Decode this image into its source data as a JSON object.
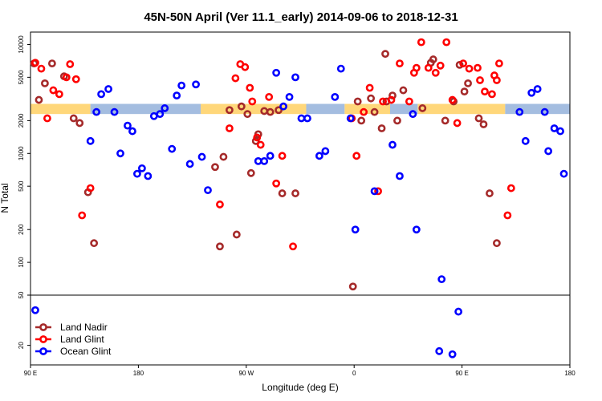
{
  "chart_data": {
    "type": "scatter",
    "title": "45N-50N April (Ver 11.1_early)   2014-09-06 to 2018-12-31",
    "xlabel": "Longitude (deg E)",
    "ylabel": "N Total",
    "x_ticks": [
      {
        "value": 90,
        "label": "90 E"
      },
      {
        "value": 180,
        "label": "180"
      },
      {
        "value": 270,
        "label": "90 W"
      },
      {
        "value": 360,
        "label": "0"
      },
      {
        "value": 450,
        "label": "90 E"
      },
      {
        "value": 540,
        "label": "180"
      }
    ],
    "xlim": [
      90,
      540
    ],
    "upper_panel": {
      "scale": "log",
      "ylim": [
        50,
        13000
      ],
      "y_ticks": [
        100,
        200,
        500,
        1000,
        2000,
        5000,
        10000
      ]
    },
    "lower_panel": {
      "scale": "log",
      "ylim": [
        14,
        50
      ],
      "y_ticks": [
        20,
        50
      ]
    },
    "bands": [
      {
        "color": "#ffd77a",
        "segments": [
          [
            90,
            140
          ],
          [
            232,
            320
          ],
          [
            352,
            390
          ],
          [
            413,
            486
          ]
        ]
      },
      {
        "color": "#a4bde0",
        "segments": [
          [
            140,
            232
          ],
          [
            320,
            352
          ],
          [
            390,
            413
          ],
          [
            486,
            540
          ]
        ]
      }
    ],
    "band_range": [
      2300,
      2850
    ],
    "legend": {
      "position": "bottom-left",
      "entries": [
        {
          "name": "Land Nadir",
          "color": "#a52a2a"
        },
        {
          "name": "Land Glint",
          "color": "#ff0000"
        },
        {
          "name": "Ocean Glint",
          "color": "#0000ff"
        }
      ]
    },
    "series": [
      {
        "name": "Land Nadir",
        "color": "#a52a2a",
        "points": [
          [
            93,
            6700
          ],
          [
            97,
            3100
          ],
          [
            102,
            4400
          ],
          [
            108,
            6700
          ],
          [
            118,
            5100
          ],
          [
            126,
            2100
          ],
          [
            131,
            1900
          ],
          [
            138,
            440
          ],
          [
            143,
            150
          ],
          [
            244,
            750
          ],
          [
            251,
            930
          ],
          [
            248,
            140
          ],
          [
            256,
            2500
          ],
          [
            262,
            180
          ],
          [
            266,
            2700
          ],
          [
            271,
            2300
          ],
          [
            274,
            660
          ],
          [
            278,
            1300
          ],
          [
            280,
            1500
          ],
          [
            285,
            2450
          ],
          [
            290,
            2400
          ],
          [
            297,
            2500
          ],
          [
            300,
            430
          ],
          [
            311,
            430
          ],
          [
            359,
            60
          ],
          [
            363,
            3000
          ],
          [
            366,
            2000
          ],
          [
            374,
            3200
          ],
          [
            377,
            2400
          ],
          [
            383,
            1700
          ],
          [
            387,
            3000
          ],
          [
            392,
            3400
          ],
          [
            396,
            2000
          ],
          [
            401,
            3800
          ],
          [
            417,
            2600
          ],
          [
            424,
            6800
          ],
          [
            426,
            7300
          ],
          [
            436,
            2000
          ],
          [
            443,
            3000
          ],
          [
            448,
            6500
          ],
          [
            452,
            3700
          ],
          [
            455,
            4400
          ],
          [
            464,
            2100
          ],
          [
            468,
            1850
          ],
          [
            473,
            430
          ],
          [
            479,
            150
          ],
          [
            386,
            8200
          ]
        ]
      },
      {
        "name": "Land Glint",
        "color": "#ff0000",
        "points": [
          [
            94,
            6800
          ],
          [
            99,
            6000
          ],
          [
            104,
            2100
          ],
          [
            109,
            3800
          ],
          [
            114,
            3500
          ],
          [
            120,
            5000
          ],
          [
            123,
            6600
          ],
          [
            128,
            4800
          ],
          [
            133,
            270
          ],
          [
            140,
            480
          ],
          [
            248,
            340
          ],
          [
            256,
            1700
          ],
          [
            261,
            4900
          ],
          [
            265,
            6600
          ],
          [
            269,
            6200
          ],
          [
            273,
            4000
          ],
          [
            275,
            3000
          ],
          [
            279,
            1400
          ],
          [
            282,
            1200
          ],
          [
            289,
            3300
          ],
          [
            295,
            530
          ],
          [
            300,
            950
          ],
          [
            309,
            140
          ],
          [
            358,
            2100
          ],
          [
            362,
            950
          ],
          [
            368,
            2400
          ],
          [
            373,
            4000
          ],
          [
            380,
            450
          ],
          [
            384,
            3000
          ],
          [
            391,
            3100
          ],
          [
            398,
            6700
          ],
          [
            406,
            3000
          ],
          [
            410,
            5500
          ],
          [
            412,
            6100
          ],
          [
            416,
            10500
          ],
          [
            422,
            6100
          ],
          [
            428,
            5500
          ],
          [
            432,
            6400
          ],
          [
            437,
            10500
          ],
          [
            442,
            3100
          ],
          [
            446,
            1900
          ],
          [
            451,
            6700
          ],
          [
            456,
            6000
          ],
          [
            463,
            6100
          ],
          [
            465,
            4700
          ],
          [
            469,
            3700
          ],
          [
            477,
            5200
          ],
          [
            479,
            4700
          ],
          [
            481,
            6700
          ],
          [
            488,
            270
          ],
          [
            491,
            480
          ],
          [
            475,
            3500
          ]
        ]
      },
      {
        "name": "Ocean Glint",
        "color": "#0000ff",
        "points": [
          [
            94,
            38
          ],
          [
            140,
            1300
          ],
          [
            145,
            2400
          ],
          [
            149,
            3500
          ],
          [
            155,
            3900
          ],
          [
            160,
            2400
          ],
          [
            165,
            1000
          ],
          [
            171,
            1800
          ],
          [
            175,
            1600
          ],
          [
            179,
            650
          ],
          [
            183,
            730
          ],
          [
            188,
            620
          ],
          [
            193,
            2200
          ],
          [
            198,
            2300
          ],
          [
            202,
            2600
          ],
          [
            208,
            1100
          ],
          [
            212,
            3400
          ],
          [
            216,
            4200
          ],
          [
            223,
            800
          ],
          [
            228,
            4300
          ],
          [
            233,
            930
          ],
          [
            238,
            460
          ],
          [
            280,
            850
          ],
          [
            285,
            850
          ],
          [
            290,
            950
          ],
          [
            295,
            5500
          ],
          [
            301,
            2700
          ],
          [
            306,
            3300
          ],
          [
            311,
            5000
          ],
          [
            316,
            2100
          ],
          [
            321,
            2100
          ],
          [
            331,
            950
          ],
          [
            336,
            1050
          ],
          [
            344,
            3300
          ],
          [
            349,
            6000
          ],
          [
            357,
            2100
          ],
          [
            361,
            200
          ],
          [
            377,
            450
          ],
          [
            392,
            1200
          ],
          [
            398,
            620
          ],
          [
            409,
            2300
          ],
          [
            412,
            200
          ],
          [
            431,
            18
          ],
          [
            433,
            70
          ],
          [
            442,
            17
          ],
          [
            447,
            37
          ],
          [
            498,
            2400
          ],
          [
            503,
            1300
          ],
          [
            508,
            3600
          ],
          [
            513,
            3900
          ],
          [
            519,
            2400
          ],
          [
            522,
            1050
          ],
          [
            527,
            1700
          ],
          [
            532,
            1600
          ],
          [
            535,
            650
          ]
        ]
      }
    ]
  }
}
